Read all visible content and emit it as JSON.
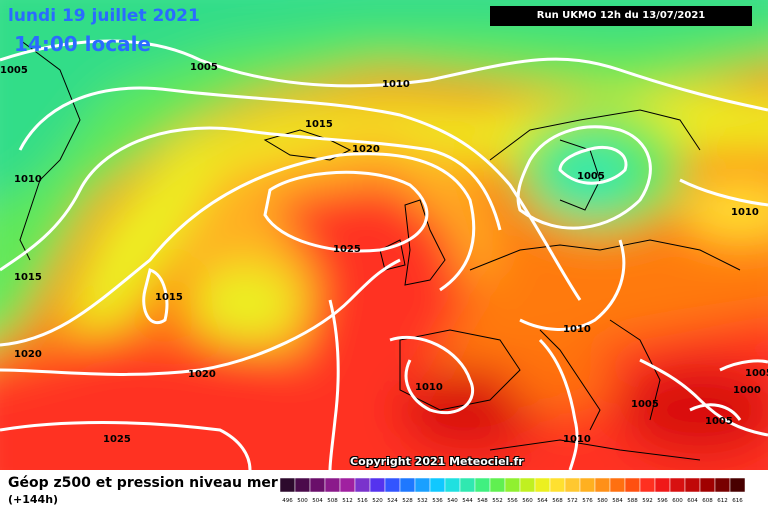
{
  "header": {
    "date": "lundi 19 juillet 2021",
    "time": "14:00 locale",
    "run": "Run UKMO 12h du 13/07/2021"
  },
  "footer": {
    "caption": "Géop z500 et pression niveau mer",
    "hours": "(+144h)",
    "copyright": "Copyright 2021 Meteociel.fr"
  },
  "isobar_labels": [
    {
      "text": "1005"
    },
    {
      "text": "1005"
    },
    {
      "text": "1010"
    },
    {
      "text": "1015"
    },
    {
      "text": "1020"
    },
    {
      "text": "1010"
    },
    {
      "text": "1015"
    },
    {
      "text": "1015"
    },
    {
      "text": "1020"
    },
    {
      "text": "1025"
    },
    {
      "text": "1005"
    },
    {
      "text": "1010"
    },
    {
      "text": "1010"
    },
    {
      "text": "1020"
    },
    {
      "text": "1010"
    },
    {
      "text": "1025"
    },
    {
      "text": "1010"
    },
    {
      "text": "1005"
    },
    {
      "text": "1005"
    },
    {
      "text": "1000"
    },
    {
      "text": "1005"
    }
  ],
  "legend": {
    "ticks": [
      "496",
      "500",
      "504",
      "508",
      "512",
      "516",
      "520",
      "524",
      "528",
      "532",
      "536",
      "540",
      "544",
      "548",
      "552",
      "556",
      "560",
      "564",
      "568",
      "572",
      "576",
      "580",
      "584",
      "588",
      "592",
      "596",
      "600",
      "604",
      "608",
      "612",
      "616"
    ],
    "colors": [
      "#2d0a2d",
      "#4b0b4b",
      "#6a0f6a",
      "#8b1a8b",
      "#a020a0",
      "#7a33cc",
      "#5533ee",
      "#3355ff",
      "#1e78ff",
      "#1aa0ff",
      "#10c8ff",
      "#20e0e0",
      "#30e8b0",
      "#40f080",
      "#60f050",
      "#90f030",
      "#c0f020",
      "#ecf020",
      "#ffe030",
      "#ffc830",
      "#ffb020",
      "#ff9018",
      "#ff7010",
      "#ff5010",
      "#ff3020",
      "#f01818",
      "#d81010",
      "#c00808",
      "#a00000",
      "#780000",
      "#480000"
    ]
  },
  "colors": {
    "isobar": "#ffffff",
    "title": "#2a6bff"
  }
}
